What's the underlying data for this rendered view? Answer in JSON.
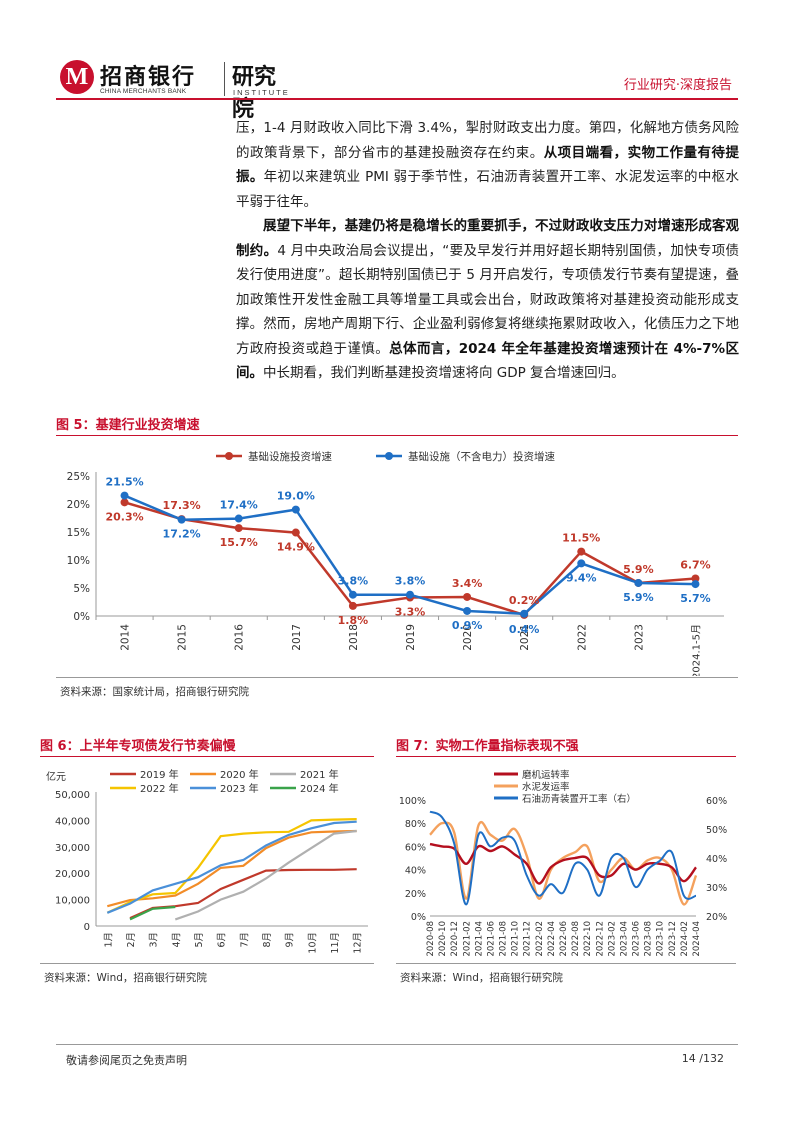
{
  "header": {
    "logo_cn": "招商银行",
    "logo_en": "CHINA MERCHANTS BANK",
    "institute_cn": "研究院",
    "institute_en": "INSTITUTE",
    "report_type": "行业研究·深度报告"
  },
  "body": {
    "p1a": "压，1-4 月财政收入同比下滑 3.4%，掣肘财政支出力度。第四，化解地方债务风险的政策背景下，部分省市的基建投融资存在约束。",
    "p1b": "从项目端看，实物工作量有待提振。",
    "p1c": "年初以来建筑业 PMI 弱于季节性，石油沥青装置开工率、水泥发运率的中枢水平弱于往年。",
    "p2a": "展望下半年，基建仍将是稳增长的重要抓手，不过财政收支压力对增速形成客观制约。",
    "p2b": "4 月中央政治局会议提出，“要及早发行并用好超长期特别国债，加快专项债发行使用进度”。超长期特别国债已于 5 月开启发行，专项债发行节奏有望提速，叠加政策性开发性金融工具等增量工具或会出台，财政政策将对基建投资动能形成支撑。然而，房地产周期下行、企业盈利弱修复将继续拖累财政收入，化债压力之下地方政府投资或趋于谨慎。",
    "p2c": "总体而言，2024 年全年基建投资增速预计在 4%-7%区间。",
    "p2d": "中长期看，我们判断基建投资增速将向 GDP 复合增速回归。"
  },
  "fig5": {
    "title": "图 5：基建行业投资增速",
    "source": "资料来源：国家统计局，招商银行研究院"
  },
  "fig6": {
    "title": "图 6：上半年专项债发行节奏偏慢",
    "source": "资料来源：Wind，招商银行研究院"
  },
  "fig7": {
    "title": "图 7：实物工作量指标表现不强",
    "source": "资料来源：Wind，招商银行研究院"
  },
  "footer": {
    "note": "敬请参阅尾页之免责声明",
    "page": "14 /132"
  },
  "colors": {
    "brand_red": "#c8102e",
    "series_red": "#c0392b",
    "series_blue": "#1f6fc5",
    "orange": "#f28c28",
    "gray": "#b0b0b0",
    "yellow": "#f5c400",
    "green": "#3aa34a"
  },
  "chart_data": [
    {
      "type": "line",
      "title": "",
      "categories": [
        "2014",
        "2015",
        "2016",
        "2017",
        "2018",
        "2019",
        "2020",
        "2021",
        "2022",
        "2023",
        "2024.1-5月"
      ],
      "ylim": [
        0,
        25
      ],
      "yticks": [
        "0%",
        "5%",
        "10%",
        "15%",
        "20%",
        "25%"
      ],
      "legend": "top",
      "series": [
        {
          "name": "基础设施投资增速",
          "values": [
            20.3,
            17.3,
            15.7,
            14.9,
            1.8,
            3.3,
            3.4,
            0.2,
            11.5,
            5.9,
            6.7
          ],
          "labels": [
            "20.3%",
            "17.3%",
            "15.7%",
            "14.9%",
            "1.8%",
            "3.3%",
            "3.4%",
            "0.2%",
            "11.5%",
            "5.9%",
            "6.7%"
          ]
        },
        {
          "name": "基础设施（不含电力）投资增速",
          "values": [
            21.5,
            17.2,
            17.4,
            19.0,
            3.8,
            3.8,
            0.9,
            0.4,
            9.4,
            5.9,
            5.7
          ],
          "labels": [
            "21.5%",
            "17.2%",
            "17.4%",
            "19.0%",
            "3.8%",
            "3.8%",
            "0.9%",
            "0.4%",
            "9.4%",
            "5.9%",
            "5.7%"
          ]
        }
      ]
    },
    {
      "type": "line",
      "title": "",
      "ylabel": "亿元",
      "categories": [
        "1月",
        "2月",
        "3月",
        "4月",
        "5月",
        "6月",
        "7月",
        "8月",
        "9月",
        "10月",
        "11月",
        "12月"
      ],
      "ylim": [
        0,
        50000
      ],
      "yticks": [
        "0",
        "10,000",
        "20,000",
        "30,000",
        "40,000",
        "50,000"
      ],
      "legend": "top",
      "series": [
        {
          "name": "2019 年",
          "values": [
            null,
            3000,
            6800,
            7500,
            8700,
            14000,
            17500,
            21000,
            21200,
            21300,
            21300,
            21500
          ]
        },
        {
          "name": "2020 年",
          "values": [
            7500,
            9800,
            10500,
            11500,
            16000,
            22000,
            22800,
            29500,
            33500,
            35500,
            35800,
            36000
          ]
        },
        {
          "name": "2021 年",
          "values": [
            null,
            null,
            null,
            2500,
            5500,
            10000,
            13000,
            18000,
            24000,
            29500,
            35000,
            36000
          ]
        },
        {
          "name": "2022 年",
          "values": [
            5000,
            9000,
            12000,
            12500,
            22000,
            34000,
            35000,
            35500,
            35700,
            40000,
            40300,
            40500
          ]
        },
        {
          "name": "2023 年",
          "values": [
            5000,
            8500,
            13500,
            16000,
            18500,
            23000,
            25000,
            30500,
            34500,
            37000,
            39000,
            39500
          ]
        },
        {
          "name": "2024 年",
          "values": [
            null,
            2500,
            6500,
            7200,
            null,
            null,
            null,
            null,
            null,
            null,
            null,
            null
          ]
        }
      ]
    },
    {
      "type": "line",
      "title": "",
      "categories": [
        "2020-08",
        "2020-10",
        "2020-12",
        "2021-02",
        "2021-04",
        "2021-06",
        "2021-08",
        "2021-10",
        "2021-12",
        "2022-02",
        "2022-04",
        "2022-06",
        "2022-08",
        "2022-10",
        "2022-12",
        "2023-02",
        "2023-04",
        "2023-06",
        "2023-08",
        "2023-10",
        "2023-12",
        "2024-02",
        "2024-04"
      ],
      "ylim": [
        0,
        100
      ],
      "yticks": [
        "0%",
        "20%",
        "40%",
        "60%",
        "80%",
        "100%"
      ],
      "y2lim": [
        20,
        60
      ],
      "y2ticks": [
        "20%",
        "30%",
        "40%",
        "50%",
        "60%"
      ],
      "legend": "top-left",
      "series": [
        {
          "name": "磨机运转率",
          "axis": "left",
          "values": [
            62,
            60,
            58,
            45,
            60,
            56,
            60,
            53,
            45,
            28,
            42,
            48,
            50,
            50,
            35,
            35,
            45,
            40,
            45,
            45,
            42,
            30,
            42
          ]
        },
        {
          "name": "水泥发运率",
          "axis": "left",
          "values": [
            70,
            80,
            72,
            15,
            78,
            70,
            65,
            75,
            52,
            15,
            40,
            50,
            55,
            60,
            30,
            40,
            50,
            40,
            48,
            50,
            40,
            10,
            35
          ]
        },
        {
          "name": "石油沥青装置开工率（右）",
          "axis": "right",
          "values": [
            56,
            54,
            45,
            24,
            48,
            44,
            47,
            46,
            34,
            27,
            31,
            28,
            38,
            36,
            27,
            40,
            40,
            30,
            36,
            39,
            42,
            27,
            27
          ]
        }
      ]
    }
  ]
}
